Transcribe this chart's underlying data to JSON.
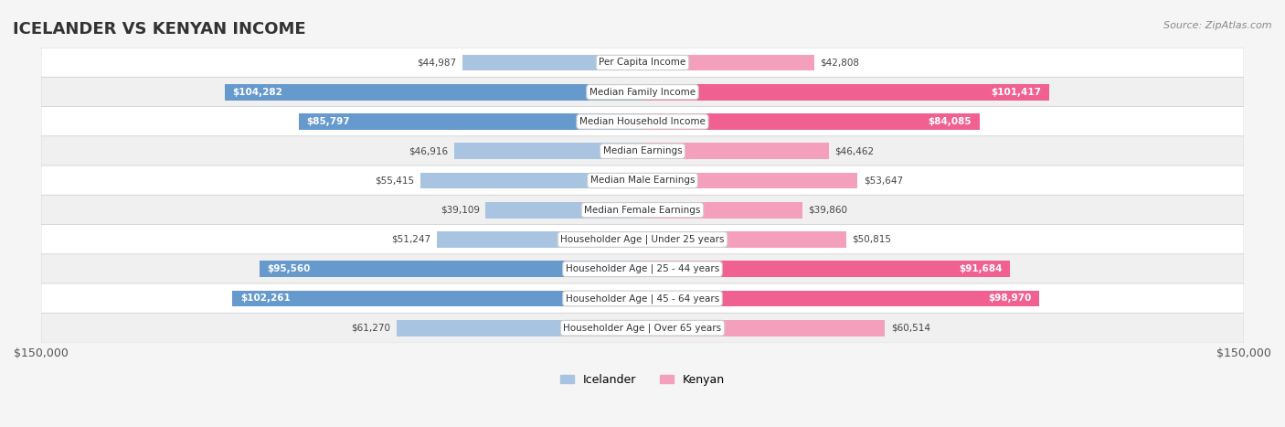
{
  "title": "ICELANDER VS KENYAN INCOME",
  "source": "Source: ZipAtlas.com",
  "categories": [
    "Per Capita Income",
    "Median Family Income",
    "Median Household Income",
    "Median Earnings",
    "Median Male Earnings",
    "Median Female Earnings",
    "Householder Age | Under 25 years",
    "Householder Age | 25 - 44 years",
    "Householder Age | 45 - 64 years",
    "Householder Age | Over 65 years"
  ],
  "icelander_values": [
    44987,
    104282,
    85797,
    46916,
    55415,
    39109,
    51247,
    95560,
    102261,
    61270
  ],
  "kenyan_values": [
    42808,
    101417,
    84085,
    46462,
    53647,
    39860,
    50815,
    91684,
    98970,
    60514
  ],
  "icelander_labels": [
    "$44,987",
    "$104,282",
    "$85,797",
    "$46,916",
    "$55,415",
    "$39,109",
    "$51,247",
    "$95,560",
    "$102,261",
    "$61,270"
  ],
  "kenyan_labels": [
    "$42,808",
    "$101,417",
    "$84,085",
    "$46,462",
    "$53,647",
    "$39,860",
    "$50,815",
    "$91,684",
    "$98,970",
    "$60,514"
  ],
  "icelander_color_light": "#a8c4e0",
  "icelander_color_dark": "#6699cc",
  "kenyan_color_light": "#f4a0bc",
  "kenyan_color_dark": "#f06090",
  "max_val": 150000,
  "bg_color": "#f5f5f5",
  "row_bg": "#ffffff",
  "row_alt_bg": "#f0f0f0",
  "label_threshold": 80000,
  "title_color": "#333333",
  "source_color": "#888888"
}
